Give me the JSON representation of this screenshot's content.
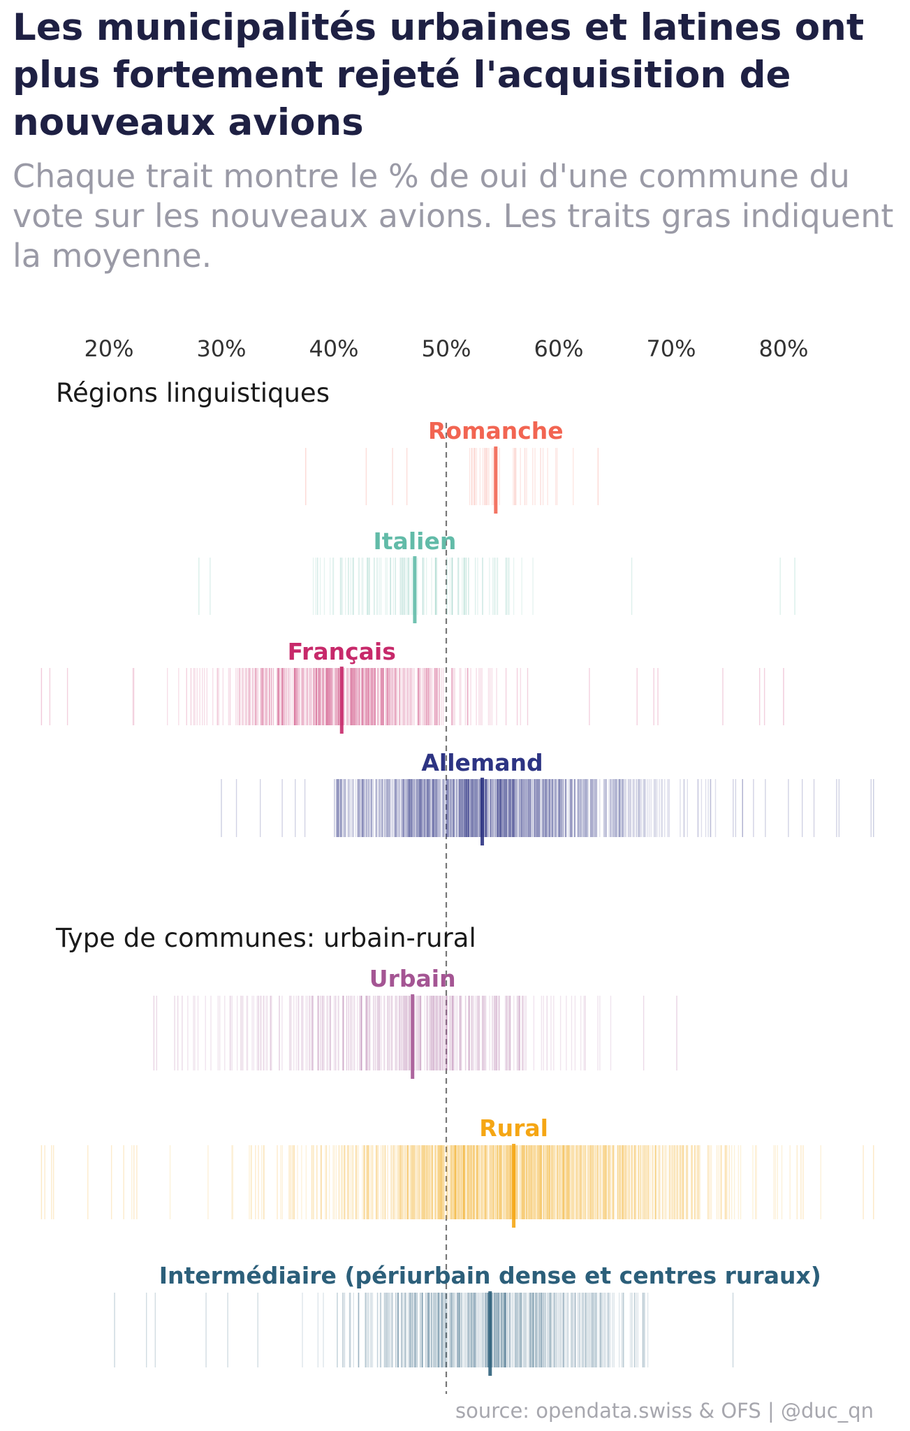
{
  "header": {
    "title": "Les municipalités urbaines et latines ont plus fortement rejeté l'acquisition de nouveaux avions",
    "subtitle": "Chaque trait montre le % de oui d'une commune du vote sur les nouveaux avions. Les traits gras indiquent la moyenne."
  },
  "footer": {
    "source": "source: opendata.swiss & OFS | @duc_qn"
  },
  "chart_data": {
    "type": "strip",
    "title": "Les municipalités urbaines et latines ont plus fortement rejeté l'acquisition de nouveaux avions",
    "x_axis": {
      "ticks": [
        20,
        30,
        40,
        50,
        60,
        70,
        80
      ],
      "tick_labels": [
        "20%",
        "30%",
        "40%",
        "50%",
        "60%",
        "70%",
        "80%"
      ],
      "range": [
        14,
        88
      ],
      "reference_line": 50,
      "position": "top"
    },
    "panels": [
      {
        "title": "Régions linguistiques",
        "groups": [
          {
            "name": "Romanche",
            "color": "#f26552",
            "mean": 54.4,
            "min": 37.5,
            "max": 63.5,
            "spread": 3.5,
            "count": 30,
            "dense_from": 52,
            "dense_to": 62
          },
          {
            "name": "Italien",
            "color": "#62bba8",
            "mean": 47.2,
            "min": 28.0,
            "max": 81.0,
            "spread": 4.5,
            "count": 110,
            "dense_from": 38,
            "dense_to": 58
          },
          {
            "name": "Français",
            "color": "#c7296a",
            "mean": 40.7,
            "min": 14.0,
            "max": 80.0,
            "spread": 6.0,
            "count": 450,
            "dense_from": 22,
            "dense_to": 65
          },
          {
            "name": "Allemand",
            "color": "#2d3483",
            "mean": 53.2,
            "min": 30.0,
            "max": 88.0,
            "spread": 7.5,
            "count": 900,
            "dense_from": 40,
            "dense_to": 82
          }
        ]
      },
      {
        "title": "Type de communes: urbain-rural",
        "groups": [
          {
            "name": "Urbain",
            "color": "#a45593",
            "mean": 47.0,
            "min": 24.0,
            "max": 70.5,
            "spread": 8.0,
            "count": 300,
            "dense_from": 27,
            "dense_to": 66
          },
          {
            "name": "Rural",
            "color": "#f5a614",
            "mean": 56.0,
            "min": 14.0,
            "max": 88.0,
            "spread": 9.0,
            "count": 850,
            "dense_from": 22,
            "dense_to": 85
          },
          {
            "name": "Intermédiaire (périurbain dense et centres ruraux)",
            "color": "#2c5f7a",
            "mean": 53.9,
            "min": 20.5,
            "max": 75.5,
            "spread": 6.5,
            "count": 450,
            "dense_from": 34,
            "dense_to": 68
          }
        ]
      }
    ]
  }
}
